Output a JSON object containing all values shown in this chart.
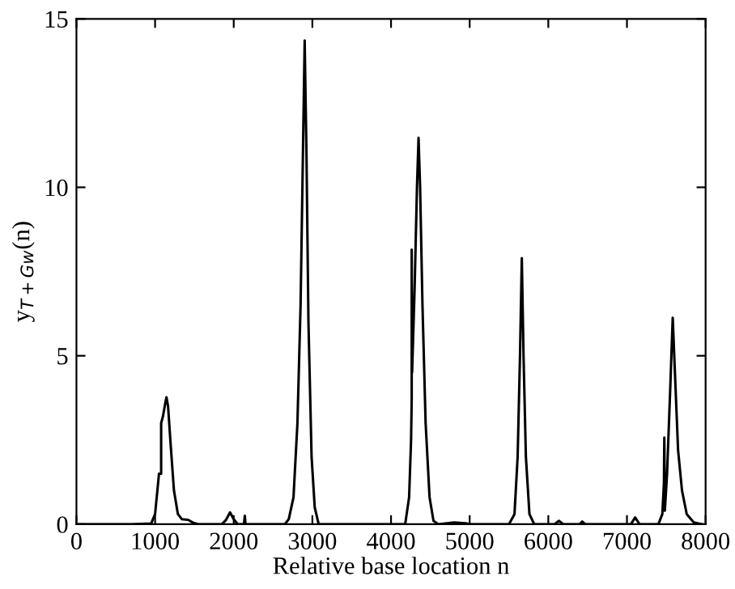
{
  "chart_data": {
    "type": "line",
    "xlabel": "Relative base location n",
    "ylabel": "y$_{T+Gw}$(n)",
    "xlim": [
      0,
      8000
    ],
    "ylim": [
      0,
      15
    ],
    "xticks": [
      0,
      1000,
      2000,
      3000,
      4000,
      5000,
      6000,
      7000,
      8000
    ],
    "yticks": [
      0,
      5,
      10,
      15
    ],
    "grid": false,
    "legend": false,
    "series": [
      {
        "color": "#000000",
        "x": [
          0,
          700,
          950,
          1000,
          1050,
          1077,
          1077,
          1100,
          1130,
          1145,
          1165,
          1200,
          1240,
          1290,
          1340,
          1420,
          1480,
          1550,
          1850,
          1900,
          1953,
          2000,
          2050,
          2130,
          2141,
          2150,
          2650,
          2700,
          2760,
          2810,
          2850,
          2880,
          2902,
          2925,
          2950,
          2990,
          3030,
          3080,
          4180,
          4230,
          4255,
          4263,
          4263,
          4268,
          4300,
          4330,
          4350,
          4370,
          4400,
          4440,
          4490,
          4540,
          4600,
          4800,
          4950,
          5000,
          5500,
          5570,
          5610,
          5640,
          5663,
          5685,
          5715,
          5760,
          5820,
          6080,
          6135,
          6190,
          6400,
          6431,
          6470,
          7050,
          7104,
          7160,
          7400,
          7450,
          7470,
          7475,
          7482,
          7510,
          7550,
          7582,
          7610,
          7650,
          7700,
          7760,
          7850,
          7950
        ],
        "values": [
          0,
          0,
          0.02,
          0.3,
          1.5,
          1.5,
          3.0,
          3.2,
          3.6,
          3.77,
          3.5,
          2.3,
          1.0,
          0.3,
          0.15,
          0.13,
          0.05,
          0,
          0,
          0.12,
          0.35,
          0.15,
          0,
          0,
          0.25,
          0,
          0,
          0.15,
          0.8,
          3.0,
          6.5,
          11.0,
          14.36,
          11.0,
          6.0,
          2.0,
          0.5,
          0,
          0,
          0.8,
          2.5,
          3.72,
          8.15,
          4.5,
          7.0,
          10.0,
          11.47,
          10.0,
          6.5,
          3.0,
          0.8,
          0.1,
          0,
          0.05,
          0.03,
          0,
          0,
          0.3,
          2.0,
          5.0,
          7.9,
          5.0,
          2.0,
          0.3,
          0,
          0,
          0.1,
          0,
          0,
          0.08,
          0,
          0,
          0.2,
          0,
          0,
          0.3,
          1.2,
          2.57,
          0.4,
          1.5,
          4.0,
          6.13,
          4.5,
          2.2,
          1.0,
          0.3,
          0.05,
          0
        ]
      }
    ]
  }
}
